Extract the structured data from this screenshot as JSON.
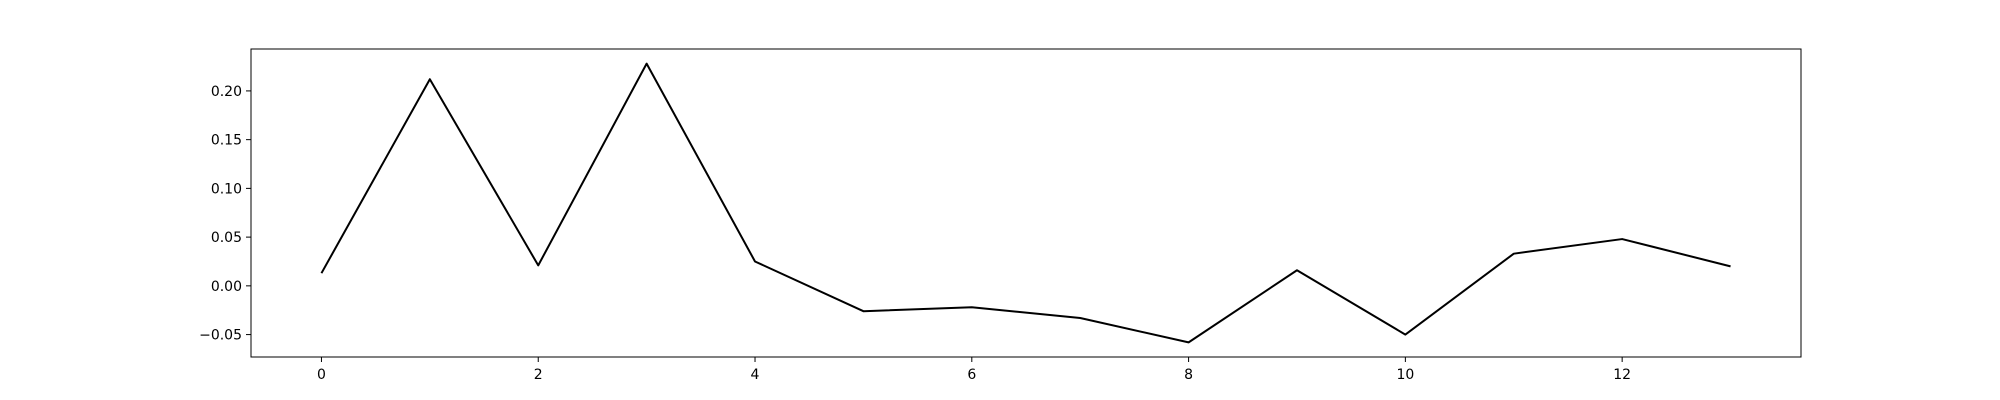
{
  "chart_data": {
    "type": "line",
    "title": "",
    "xlabel": "",
    "ylabel": "",
    "xlim": [
      -0.65,
      13.65
    ],
    "ylim": [
      -0.073,
      0.243
    ],
    "xticks": [
      0,
      2,
      4,
      6,
      8,
      10,
      12
    ],
    "yticks": [
      -0.05,
      0.0,
      0.05,
      0.1,
      0.15,
      0.2
    ],
    "xtick_labels": [
      "0",
      "2",
      "4",
      "6",
      "8",
      "10",
      "12"
    ],
    "ytick_labels": [
      "−0.05",
      "0.00",
      "0.05",
      "0.10",
      "0.15",
      "0.20"
    ],
    "grid": false,
    "legend": "none",
    "series": [
      {
        "color": "#000000",
        "x": [
          0,
          1,
          2,
          3,
          4,
          5,
          6,
          7,
          8,
          9,
          10,
          11,
          12,
          13
        ],
        "values": [
          0.013,
          0.212,
          0.021,
          0.228,
          0.025,
          -0.026,
          -0.022,
          -0.033,
          -0.058,
          0.016,
          -0.05,
          0.033,
          0.048,
          0.02
        ]
      }
    ]
  }
}
